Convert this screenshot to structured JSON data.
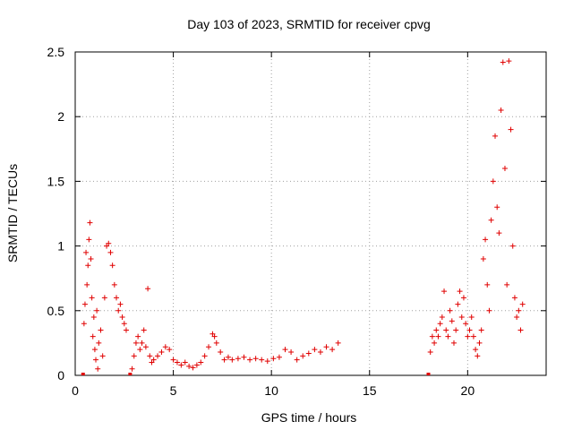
{
  "chart_data": {
    "type": "scatter",
    "title": "Day 103 of 2023, SRMTID for receiver cpvg",
    "xlabel": "GPS time / hours",
    "ylabel": "SRMTID / TECUs",
    "xlim": [
      0,
      24
    ],
    "ylim": [
      0,
      2.5
    ],
    "x_ticks": [
      0,
      5,
      10,
      15,
      20
    ],
    "x_tick_labels": [
      "0",
      "5",
      "10",
      "15",
      "20"
    ],
    "y_ticks": [
      0,
      0.5,
      1,
      1.5,
      2,
      2.5
    ],
    "y_tick_labels": [
      "0",
      "0.5",
      "1",
      "1.5",
      "2",
      "2.5"
    ],
    "grid": true,
    "marker": "plus",
    "color": "#e00000",
    "series": [
      {
        "name": "SRMTID",
        "points": [
          [
            0.4,
            0.0
          ],
          [
            0.45,
            0.4
          ],
          [
            0.5,
            0.55
          ],
          [
            0.55,
            0.95
          ],
          [
            0.6,
            0.7
          ],
          [
            0.65,
            0.85
          ],
          [
            0.7,
            1.05
          ],
          [
            0.75,
            1.18
          ],
          [
            0.8,
            0.9
          ],
          [
            0.85,
            0.6
          ],
          [
            0.9,
            0.3
          ],
          [
            0.95,
            0.45
          ],
          [
            1.0,
            0.2
          ],
          [
            1.05,
            0.12
          ],
          [
            1.1,
            0.5
          ],
          [
            1.15,
            0.05
          ],
          [
            1.2,
            0.25
          ],
          [
            1.3,
            0.35
          ],
          [
            1.4,
            0.15
          ],
          [
            1.5,
            0.6
          ],
          [
            1.6,
            1.0
          ],
          [
            1.7,
            1.02
          ],
          [
            1.8,
            0.95
          ],
          [
            1.9,
            0.85
          ],
          [
            2.0,
            0.7
          ],
          [
            2.1,
            0.6
          ],
          [
            2.2,
            0.5
          ],
          [
            2.3,
            0.55
          ],
          [
            2.4,
            0.45
          ],
          [
            2.5,
            0.4
          ],
          [
            2.6,
            0.35
          ],
          [
            2.8,
            0.0
          ],
          [
            2.9,
            0.05
          ],
          [
            3.0,
            0.15
          ],
          [
            3.1,
            0.25
          ],
          [
            3.2,
            0.3
          ],
          [
            3.3,
            0.2
          ],
          [
            3.4,
            0.25
          ],
          [
            3.5,
            0.35
          ],
          [
            3.6,
            0.22
          ],
          [
            3.7,
            0.67
          ],
          [
            3.8,
            0.15
          ],
          [
            3.9,
            0.1
          ],
          [
            4.0,
            0.12
          ],
          [
            4.2,
            0.15
          ],
          [
            4.4,
            0.18
          ],
          [
            4.6,
            0.22
          ],
          [
            4.8,
            0.2
          ],
          [
            5.0,
            0.12
          ],
          [
            5.2,
            0.1
          ],
          [
            5.4,
            0.08
          ],
          [
            5.6,
            0.1
          ],
          [
            5.8,
            0.07
          ],
          [
            6.0,
            0.06
          ],
          [
            6.2,
            0.08
          ],
          [
            6.4,
            0.1
          ],
          [
            6.6,
            0.15
          ],
          [
            6.8,
            0.22
          ],
          [
            7.0,
            0.32
          ],
          [
            7.1,
            0.3
          ],
          [
            7.2,
            0.25
          ],
          [
            7.4,
            0.18
          ],
          [
            7.6,
            0.12
          ],
          [
            7.8,
            0.14
          ],
          [
            8.0,
            0.12
          ],
          [
            8.3,
            0.13
          ],
          [
            8.6,
            0.14
          ],
          [
            8.9,
            0.12
          ],
          [
            9.2,
            0.13
          ],
          [
            9.5,
            0.12
          ],
          [
            9.8,
            0.11
          ],
          [
            10.1,
            0.13
          ],
          [
            10.4,
            0.14
          ],
          [
            10.7,
            0.2
          ],
          [
            11.0,
            0.18
          ],
          [
            11.3,
            0.12
          ],
          [
            11.6,
            0.15
          ],
          [
            11.9,
            0.17
          ],
          [
            12.2,
            0.2
          ],
          [
            12.5,
            0.18
          ],
          [
            12.8,
            0.22
          ],
          [
            13.1,
            0.2
          ],
          [
            13.4,
            0.25
          ],
          [
            18.0,
            0.0
          ],
          [
            18.1,
            0.18
          ],
          [
            18.2,
            0.3
          ],
          [
            18.3,
            0.25
          ],
          [
            18.4,
            0.35
          ],
          [
            18.5,
            0.3
          ],
          [
            18.6,
            0.4
          ],
          [
            18.7,
            0.45
          ],
          [
            18.8,
            0.65
          ],
          [
            18.9,
            0.35
          ],
          [
            19.0,
            0.3
          ],
          [
            19.1,
            0.5
          ],
          [
            19.2,
            0.42
          ],
          [
            19.3,
            0.25
          ],
          [
            19.4,
            0.35
          ],
          [
            19.5,
            0.55
          ],
          [
            19.6,
            0.65
          ],
          [
            19.7,
            0.45
          ],
          [
            19.8,
            0.6
          ],
          [
            19.9,
            0.4
          ],
          [
            20.0,
            0.3
          ],
          [
            20.1,
            0.35
          ],
          [
            20.2,
            0.45
          ],
          [
            20.3,
            0.3
          ],
          [
            20.4,
            0.2
          ],
          [
            20.5,
            0.15
          ],
          [
            20.6,
            0.25
          ],
          [
            20.7,
            0.35
          ],
          [
            20.8,
            0.9
          ],
          [
            20.9,
            1.05
          ],
          [
            21.0,
            0.7
          ],
          [
            21.1,
            0.5
          ],
          [
            21.2,
            1.2
          ],
          [
            21.3,
            1.5
          ],
          [
            21.4,
            1.85
          ],
          [
            21.5,
            1.3
          ],
          [
            21.6,
            1.1
          ],
          [
            21.7,
            2.05
          ],
          [
            21.8,
            2.42
          ],
          [
            21.9,
            1.6
          ],
          [
            22.0,
            0.7
          ],
          [
            22.1,
            2.43
          ],
          [
            22.2,
            1.9
          ],
          [
            22.3,
            1.0
          ],
          [
            22.4,
            0.6
          ],
          [
            22.5,
            0.45
          ],
          [
            22.6,
            0.5
          ],
          [
            22.7,
            0.35
          ],
          [
            22.8,
            0.55
          ]
        ]
      }
    ]
  }
}
